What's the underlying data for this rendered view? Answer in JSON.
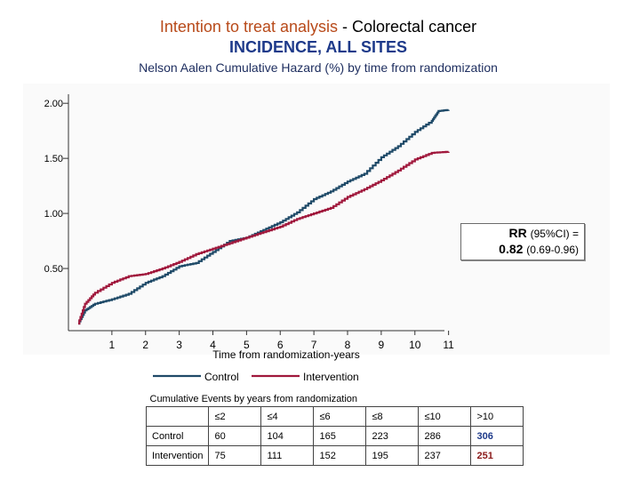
{
  "title": {
    "line1_highlight": "Intention to treat analysis",
    "line1_rest": "- Colorectal cancer",
    "line2": "INCIDENCE, ALL SITES",
    "subtitle": "Nelson Aalen Cumulative Hazard (%) by time from randomization"
  },
  "rr_box": {
    "label": "RR",
    "ci_label": "(95%CI) =",
    "value": "0.82",
    "ci": "(0.69-0.96)"
  },
  "colors": {
    "control": "#1f4a68",
    "intervention": "#a0183c"
  },
  "chart_data": {
    "type": "line",
    "title": "Nelson Aalen Cumulative Hazard (%) by time from randomization",
    "xlabel": "Time from randomization-years",
    "ylabel": "",
    "xlim": [
      0,
      11.3
    ],
    "ylim": [
      0,
      2.05
    ],
    "y_ticks": [
      0.5,
      1.0,
      1.5,
      2.0
    ],
    "y_tick_labels": [
      "0.50",
      "1.00",
      "1.50",
      "2.00"
    ],
    "x_ticks": [
      1,
      2,
      3,
      4,
      5,
      6,
      7,
      8,
      9,
      10,
      11
    ],
    "x_tick_labels": [
      "1",
      "2",
      "3",
      "4",
      "5",
      "6",
      "7",
      "8",
      "9",
      "10",
      "11"
    ],
    "legend": [
      "Control",
      "Intervention"
    ],
    "legend_position": "bottom",
    "series": [
      {
        "name": "Control",
        "x": [
          0,
          0.2,
          0.5,
          1.0,
          1.5,
          2.0,
          2.5,
          3.0,
          3.5,
          4.0,
          4.5,
          5.0,
          5.5,
          6.0,
          6.5,
          7.0,
          7.5,
          8.0,
          8.5,
          9.0,
          9.5,
          10.0,
          10.5,
          10.7,
          11.0
        ],
        "y": [
          0.0,
          0.12,
          0.18,
          0.22,
          0.27,
          0.37,
          0.43,
          0.52,
          0.55,
          0.65,
          0.75,
          0.78,
          0.85,
          0.92,
          1.01,
          1.13,
          1.2,
          1.29,
          1.36,
          1.51,
          1.61,
          1.74,
          1.84,
          1.93,
          1.94
        ]
      },
      {
        "name": "Intervention",
        "x": [
          0,
          0.2,
          0.5,
          1.0,
          1.5,
          2.0,
          2.5,
          3.0,
          3.5,
          4.0,
          4.5,
          5.0,
          5.5,
          6.0,
          6.5,
          7.0,
          7.5,
          8.0,
          8.5,
          9.0,
          9.5,
          10.0,
          10.5,
          11.0
        ],
        "y": [
          0.0,
          0.18,
          0.28,
          0.37,
          0.43,
          0.45,
          0.5,
          0.56,
          0.63,
          0.68,
          0.73,
          0.78,
          0.83,
          0.88,
          0.95,
          1.0,
          1.05,
          1.15,
          1.22,
          1.3,
          1.39,
          1.49,
          1.55,
          1.56
        ]
      }
    ]
  },
  "events_table": {
    "caption": "Cumulative Events by years from randomization",
    "headers": [
      "",
      "≤2",
      "≤4",
      "≤6",
      "≤8",
      "≤10",
      ">10"
    ],
    "rows": [
      {
        "label": "Control",
        "values": [
          "60",
          "104",
          "165",
          "223",
          "286",
          "306"
        ]
      },
      {
        "label": "Intervention",
        "values": [
          "75",
          "111",
          "152",
          "195",
          "237",
          "251"
        ]
      }
    ]
  }
}
